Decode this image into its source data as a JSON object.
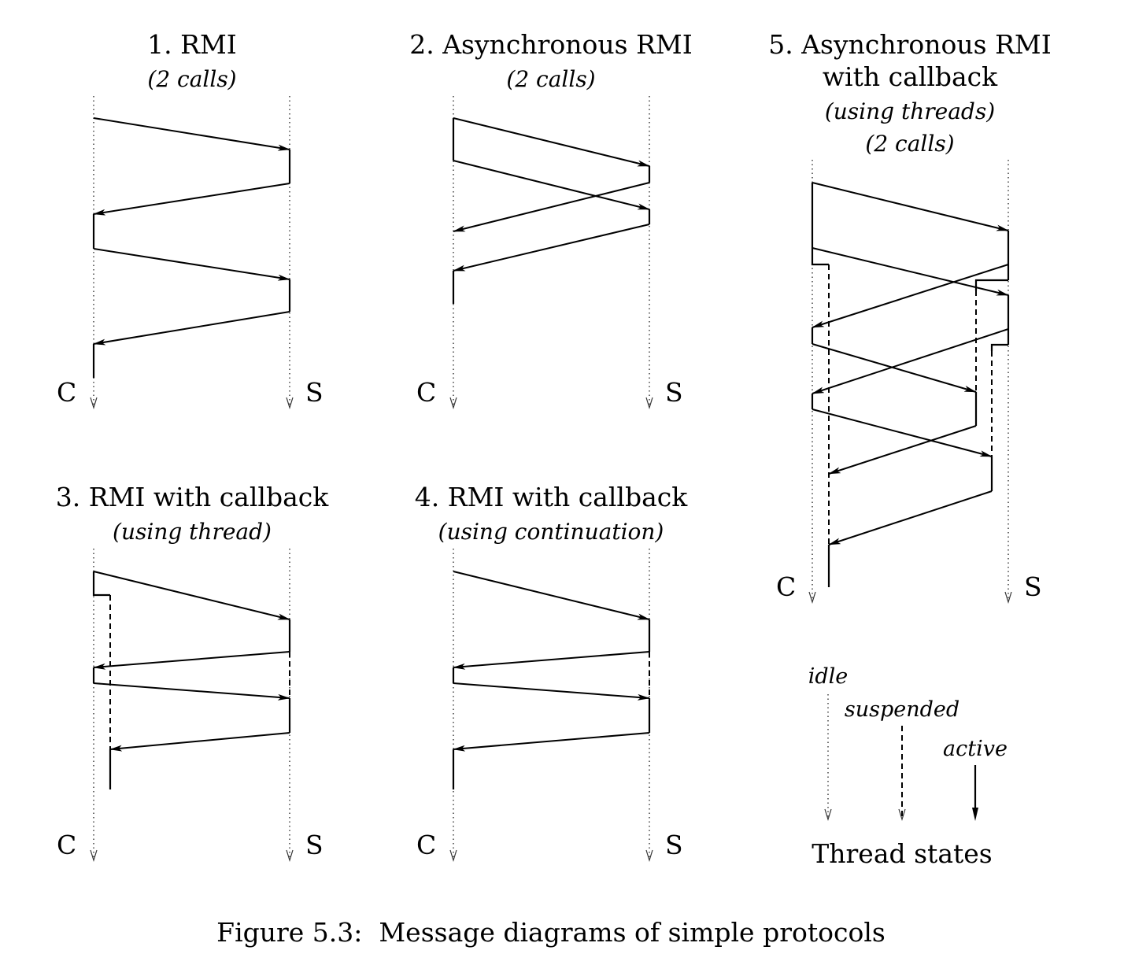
{
  "panels": {
    "p1": {
      "title": "1. RMI",
      "subtitle": "(2 calls)",
      "client": "C",
      "server": "S"
    },
    "p2": {
      "title": "2. Asynchronous RMI",
      "subtitle": "(2 calls)",
      "client": "C",
      "server": "S"
    },
    "p3": {
      "title": "3. RMI with callback",
      "subtitle": "(using thread)",
      "client": "C",
      "server": "S"
    },
    "p4": {
      "title": "4. RMI with callback",
      "subtitle": "(using continuation)",
      "client": "C",
      "server": "S"
    },
    "p5": {
      "title_line1": "5. Asynchronous RMI",
      "title_line2": "with callback",
      "subtitle1": "(using threads)",
      "subtitle2": "(2 calls)",
      "client": "C",
      "server": "S"
    }
  },
  "legend": {
    "idle": "idle",
    "suspended": "suspended",
    "active": "active",
    "title": "Thread states"
  },
  "caption": "Figure 5.3:  Message diagrams of simple protocols"
}
